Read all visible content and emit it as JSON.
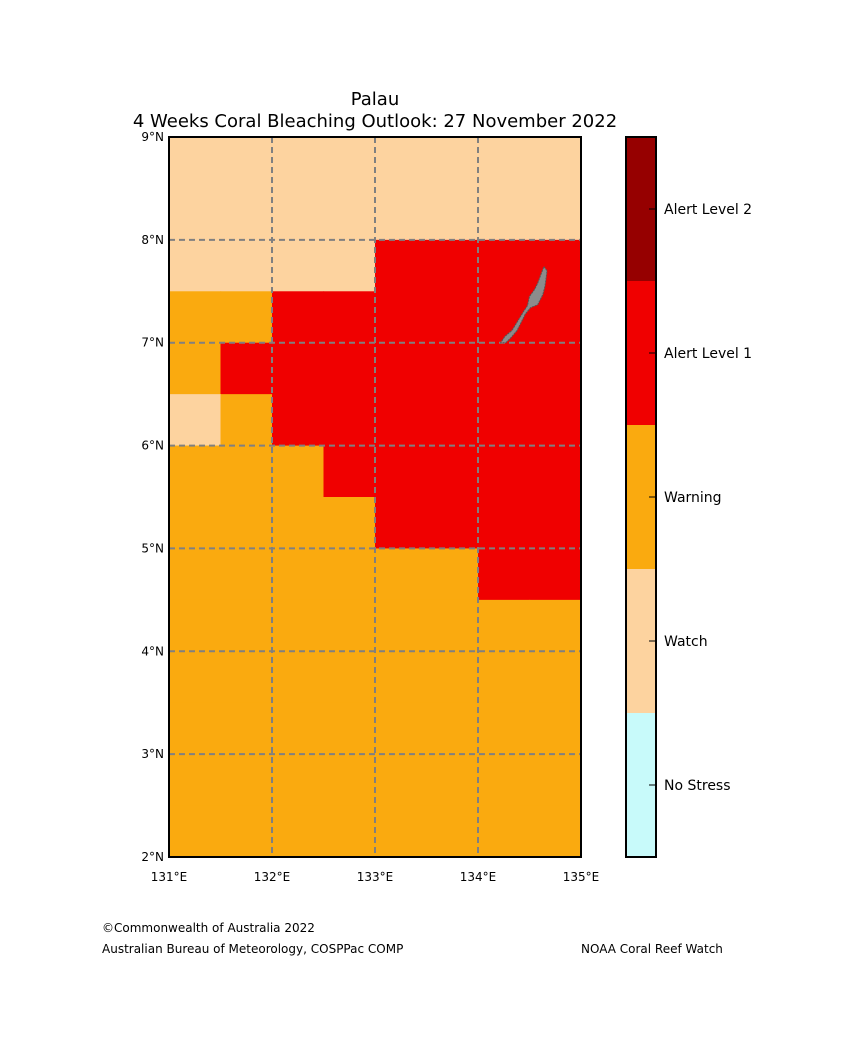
{
  "title": {
    "line1": "Palau",
    "line2": "4 Weeks Coral Bleaching Outlook: 27 November 2022"
  },
  "map": {
    "lon_range": [
      131,
      135
    ],
    "lat_range": [
      2,
      9
    ],
    "cell_size_deg": 0.5,
    "x_ticks": [
      131,
      132,
      133,
      134,
      135
    ],
    "y_ticks": [
      2,
      3,
      4,
      5,
      6,
      7,
      8,
      9
    ],
    "x_tick_labels": [
      "131°E",
      "132°E",
      "133°E",
      "134°E",
      "135°E"
    ],
    "y_tick_labels": [
      "2°N",
      "3°N",
      "4°N",
      "5°N",
      "6°N",
      "7°N",
      "8°N",
      "9°N"
    ],
    "grid": true,
    "grid_style": "dashed",
    "grid_color": "#808080",
    "land_color": "#8c8c8c",
    "land_edge_color": "#555555",
    "island_outline": [
      [
        134.64,
        7.74
      ],
      [
        134.67,
        7.7
      ],
      [
        134.66,
        7.62
      ],
      [
        134.65,
        7.55
      ],
      [
        134.63,
        7.47
      ],
      [
        134.58,
        7.37
      ],
      [
        134.51,
        7.34
      ],
      [
        134.46,
        7.28
      ],
      [
        134.42,
        7.2
      ],
      [
        134.38,
        7.12
      ],
      [
        134.32,
        7.05
      ],
      [
        134.27,
        7.0
      ],
      [
        134.22,
        7.0
      ],
      [
        134.26,
        7.06
      ],
      [
        134.33,
        7.12
      ],
      [
        134.38,
        7.2
      ],
      [
        134.44,
        7.3
      ],
      [
        134.48,
        7.36
      ],
      [
        134.5,
        7.45
      ],
      [
        134.55,
        7.52
      ],
      [
        134.58,
        7.58
      ],
      [
        134.61,
        7.66
      ]
    ]
  },
  "chart_data": {
    "type": "heatmap",
    "title": "Palau\n4 Weeks Coral Bleaching Outlook: 27 November 2022",
    "x": [
      131.0,
      131.5,
      132.0,
      132.5,
      133.0,
      133.5,
      134.0,
      134.5
    ],
    "y": [
      8.5,
      8.0,
      7.5,
      7.0,
      6.5,
      6.0,
      5.5,
      5.0,
      4.5,
      4.0,
      3.5,
      3.0,
      2.5,
      2.0
    ],
    "level_names": [
      "No Stress",
      "Watch",
      "Warning",
      "Alert Level 1",
      "Alert Level 2"
    ],
    "level_colors": [
      "#c8fafa",
      "#fdd39f",
      "#faaa0f",
      "#f00000",
      "#960000"
    ],
    "values": [
      [
        1,
        1,
        1,
        1,
        1,
        1,
        1,
        1
      ],
      [
        1,
        1,
        1,
        1,
        1,
        1,
        1,
        1
      ],
      [
        1,
        1,
        1,
        1,
        3,
        3,
        3,
        3
      ],
      [
        2,
        2,
        3,
        3,
        3,
        3,
        3,
        3
      ],
      [
        2,
        3,
        3,
        3,
        3,
        3,
        3,
        3
      ],
      [
        1,
        2,
        3,
        3,
        3,
        3,
        3,
        3
      ],
      [
        2,
        2,
        2,
        3,
        3,
        3,
        3,
        3
      ],
      [
        2,
        2,
        2,
        2,
        3,
        3,
        3,
        3
      ],
      [
        2,
        2,
        2,
        2,
        2,
        2,
        3,
        3
      ],
      [
        2,
        2,
        2,
        2,
        2,
        2,
        2,
        2
      ],
      [
        2,
        2,
        2,
        2,
        2,
        2,
        2,
        2
      ],
      [
        2,
        2,
        2,
        2,
        2,
        2,
        2,
        2
      ],
      [
        2,
        2,
        2,
        2,
        2,
        2,
        2,
        2
      ],
      [
        2,
        2,
        2,
        2,
        2,
        2,
        2,
        2
      ]
    ],
    "colorbar_labels": [
      "Alert Level 2",
      "Alert Level 1",
      "Warning",
      "Watch",
      "No Stress"
    ]
  },
  "footer": {
    "copyright": "©Commonwealth of Australia 2022",
    "bureau": "Australian Bureau of Meteorology, COSPPac COMP",
    "noaa": "NOAA Coral Reef Watch"
  }
}
